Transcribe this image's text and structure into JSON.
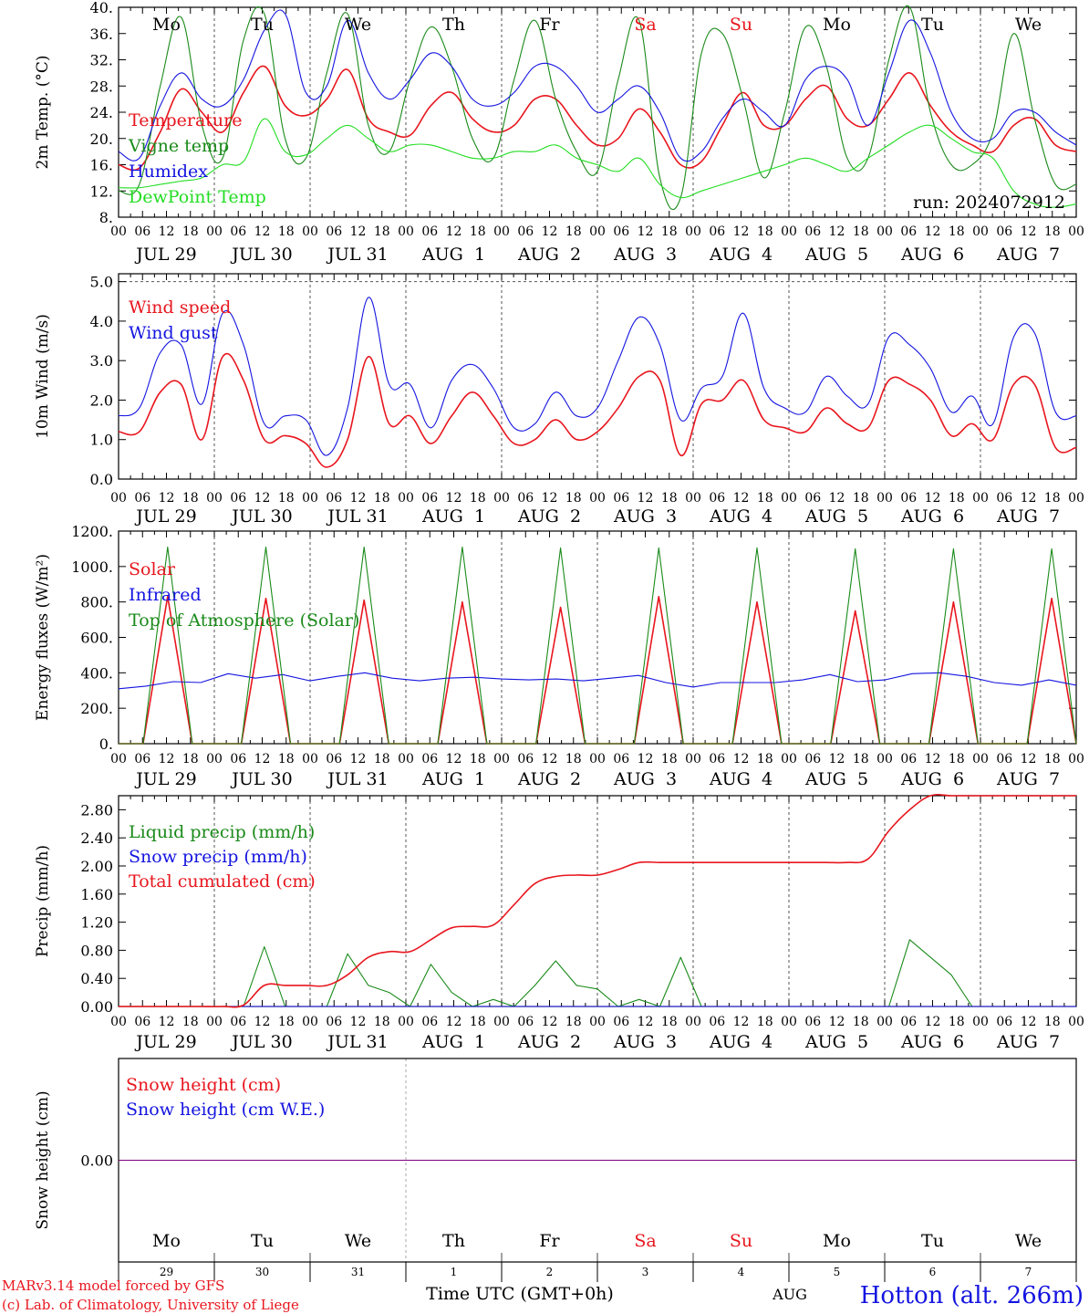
{
  "days": [
    {
      "date": "JUL 29",
      "weekday": "Mo",
      "daynum": "29",
      "weekend": false
    },
    {
      "date": "JUL 30",
      "weekday": "Tu",
      "daynum": "30",
      "weekend": false
    },
    {
      "date": "JUL 31",
      "weekday": "We",
      "daynum": "31",
      "weekend": false
    },
    {
      "date": "AUG  1",
      "weekday": "Th",
      "daynum": "1",
      "weekend": false
    },
    {
      "date": "AUG  2",
      "weekday": "Fr",
      "daynum": "2",
      "weekend": false
    },
    {
      "date": "AUG  3",
      "weekday": "Sa",
      "daynum": "3",
      "weekend": true
    },
    {
      "date": "AUG  4",
      "weekday": "Su",
      "daynum": "4",
      "weekend": true
    },
    {
      "date": "AUG  5",
      "weekday": "Mo",
      "daynum": "5",
      "weekend": false
    },
    {
      "date": "AUG  6",
      "weekday": "Tu",
      "daynum": "6",
      "weekend": false
    },
    {
      "date": "AUG  7",
      "weekday": "We",
      "daynum": "7",
      "weekend": false
    }
  ],
  "hour_ticks": [
    "00",
    "06",
    "12",
    "18"
  ],
  "hour_end": "00",
  "run_label": "run: 2024072912",
  "footer": {
    "model": "MARv3.14 model forced by GFS",
    "credit": "(c) Lab. of Climatology, University of Liege",
    "time_axis": "Time UTC (GMT+0h)",
    "month": "AUG",
    "station": "Hotton (alt. 266m)"
  },
  "colors": {
    "red": "#e8161e",
    "green": "#1a8a1a",
    "blue": "#1414e0",
    "lightgreen": "#22dd22",
    "purple": "#800080",
    "weekend": "#e8161e"
  },
  "chart_data": [
    {
      "type": "line",
      "id": "temp",
      "ylabel": "2m Temp. (°C)",
      "ylim": [
        8,
        40
      ],
      "yticks": [
        "8.",
        "12.",
        "16.",
        "20.",
        "24.",
        "28.",
        "32.",
        "36.",
        "40."
      ],
      "ytick_values": [
        8,
        12,
        16,
        20,
        24,
        28,
        32,
        36,
        40
      ],
      "x_step_hours": 6,
      "series": [
        {
          "name": "Temperature",
          "color": "red",
          "values": [
            16,
            15.5,
            21,
            27.5,
            24,
            21,
            27,
            31,
            25,
            23.5,
            26,
            30.5,
            23,
            21,
            20.5,
            25,
            27,
            23,
            21,
            22,
            26,
            26,
            22,
            19,
            20,
            24.5,
            21,
            16,
            16.5,
            22,
            27,
            22,
            22,
            26,
            28,
            23,
            22,
            26,
            30,
            25,
            21,
            19,
            18,
            22,
            23,
            19,
            18
          ]
        },
        {
          "name": "Vigne temp",
          "color": "green",
          "values": [
            12,
            13,
            28,
            38.5,
            22,
            17,
            35,
            39,
            20,
            17,
            30,
            39,
            22,
            18,
            29,
            37,
            31,
            20,
            17,
            29,
            38,
            26,
            18,
            15,
            29,
            38,
            14,
            11,
            33,
            36,
            26,
            14,
            24,
            37,
            31,
            17,
            17,
            32,
            40,
            24,
            16,
            16,
            21,
            36,
            23,
            13,
            13
          ]
        },
        {
          "name": "Humidex",
          "color": "blue",
          "values": [
            18,
            17,
            25,
            30,
            26,
            25,
            29,
            36.5,
            39,
            27,
            28,
            38,
            30,
            26,
            29,
            33,
            31,
            26,
            25,
            27,
            31,
            31,
            28,
            24,
            26,
            28,
            24,
            17,
            18,
            23,
            26,
            24,
            22,
            29,
            31,
            29,
            22,
            30,
            38,
            33,
            24,
            20,
            20,
            24,
            24,
            21,
            19
          ]
        },
        {
          "name": "DewPoint Temp",
          "color": "lightgreen",
          "values": [
            12.5,
            12.5,
            13,
            13.5,
            14,
            16,
            16.5,
            23,
            18,
            17.5,
            20,
            22,
            20,
            18,
            19,
            19,
            18,
            17,
            17,
            18,
            18,
            19,
            17,
            16,
            15,
            17,
            13,
            11,
            12,
            13,
            14,
            15,
            16,
            17,
            16,
            15,
            17,
            19,
            21,
            22,
            20,
            18,
            17,
            12,
            10,
            9.5,
            10
          ]
        }
      ]
    },
    {
      "type": "line",
      "id": "wind",
      "ylabel": "10m Wind (m/s)",
      "ylim": [
        0,
        5.2
      ],
      "yticks": [
        "0.0",
        "1.0",
        "2.0",
        "3.0",
        "4.0",
        "5.0"
      ],
      "ytick_values": [
        0,
        1,
        2,
        3,
        4,
        5
      ],
      "dashed_y": 5,
      "x_step_hours": 6,
      "series": [
        {
          "name": "Wind speed",
          "color": "red",
          "values": [
            1.2,
            1.2,
            2.2,
            2.4,
            1.0,
            3.1,
            2.5,
            1.0,
            1.1,
            0.9,
            0.3,
            1.0,
            3.1,
            1.4,
            1.6,
            0.9,
            1.6,
            2.2,
            1.6,
            0.9,
            1.0,
            1.5,
            1.0,
            1.2,
            1.8,
            2.6,
            2.5,
            0.6,
            1.9,
            2.0,
            2.5,
            1.5,
            1.3,
            1.2,
            1.8,
            1.4,
            1.3,
            2.5,
            2.4,
            2.0,
            1.1,
            1.4,
            1.0,
            2.4,
            2.4,
            0.8,
            0.8
          ]
        },
        {
          "name": "Wind gust",
          "color": "blue",
          "values": [
            1.6,
            1.8,
            3.2,
            3.4,
            1.9,
            4.2,
            3.4,
            1.4,
            1.6,
            1.5,
            0.6,
            1.8,
            4.6,
            2.4,
            2.4,
            1.3,
            2.5,
            2.9,
            2.3,
            1.3,
            1.4,
            2.2,
            1.6,
            1.8,
            3.0,
            4.1,
            3.4,
            1.5,
            2.3,
            2.6,
            4.2,
            2.3,
            1.8,
            1.7,
            2.6,
            2.1,
            1.9,
            3.6,
            3.4,
            2.8,
            1.7,
            2.1,
            1.4,
            3.6,
            3.7,
            1.7,
            1.6
          ]
        }
      ]
    },
    {
      "type": "line",
      "id": "energy",
      "ylabel": "Energy fluxes (W/m²)",
      "ylim": [
        0,
        1200
      ],
      "yticks": [
        "0.",
        "200.",
        "400.",
        "600.",
        "800.",
        "1000.",
        "1200."
      ],
      "ytick_values": [
        0,
        200,
        400,
        600,
        800,
        1000,
        1200
      ],
      "x_step_hours": 6,
      "series": [
        {
          "name": "Solar",
          "color": "red",
          "values": [
            0,
            0,
            830,
            0,
            0,
            0,
            820,
            0,
            0,
            0,
            810,
            0,
            0,
            0,
            800,
            0,
            0,
            0,
            770,
            0,
            0,
            0,
            830,
            0,
            0,
            0,
            800,
            0,
            0,
            0,
            750,
            0,
            0,
            0,
            800,
            0,
            0,
            0,
            820,
            0
          ]
        },
        {
          "name": "Infrared",
          "color": "blue",
          "values": [
            310,
            325,
            350,
            345,
            395,
            370,
            390,
            355,
            380,
            400,
            370,
            355,
            370,
            375,
            365,
            360,
            365,
            355,
            370,
            385,
            345,
            320,
            345,
            345,
            345,
            360,
            390,
            350,
            360,
            395,
            400,
            380,
            345,
            330,
            360,
            330
          ]
        },
        {
          "name": "Top of Atmosphere (Solar)",
          "color": "green",
          "values": [
            0,
            0,
            1110,
            0,
            0,
            0,
            1110,
            0,
            0,
            0,
            1110,
            0,
            0,
            0,
            1110,
            0,
            0,
            0,
            1105,
            0,
            0,
            0,
            1105,
            0,
            0,
            0,
            1105,
            0,
            0,
            0,
            1100,
            0,
            0,
            0,
            1100,
            0,
            0,
            0,
            1100,
            0
          ]
        }
      ]
    },
    {
      "type": "line",
      "id": "precip",
      "ylabel": "Precip (mm/h)",
      "ylim": [
        0,
        3.0
      ],
      "yticks": [
        "0.00",
        "0.40",
        "0.80",
        "1.20",
        "1.60",
        "2.00",
        "2.40",
        "2.80"
      ],
      "ytick_values": [
        0,
        0.4,
        0.8,
        1.2,
        1.6,
        2.0,
        2.4,
        2.8
      ],
      "x_step_hours": 6,
      "series": [
        {
          "name": "Liquid precip (mm/h)",
          "color": "green",
          "values": [
            0,
            0,
            0,
            0,
            0,
            0,
            0,
            0.85,
            0,
            0,
            0,
            0.75,
            0.3,
            0.2,
            0,
            0.6,
            0.2,
            0,
            0.1,
            0,
            0.3,
            0.65,
            0.3,
            0.25,
            0,
            0.1,
            0,
            0.7,
            0,
            0,
            0,
            0,
            0,
            0,
            0,
            0,
            0,
            0,
            0.95,
            0.7,
            0.45,
            0,
            0,
            0,
            0,
            0,
            0
          ]
        },
        {
          "name": "Snow precip (mm/h)",
          "color": "blue",
          "values": [
            0,
            0,
            0,
            0,
            0,
            0,
            0,
            0,
            0,
            0,
            0,
            0,
            0,
            0,
            0,
            0,
            0,
            0,
            0,
            0,
            0,
            0,
            0,
            0,
            0,
            0,
            0,
            0,
            0,
            0,
            0,
            0,
            0,
            0,
            0,
            0,
            0,
            0,
            0,
            0,
            0,
            0,
            0,
            0,
            0,
            0,
            0
          ]
        },
        {
          "name": "Total cumulated (cm)",
          "color": "red",
          "values": [
            0,
            0,
            0,
            0,
            0,
            0,
            0.02,
            0.3,
            0.3,
            0.3,
            0.3,
            0.45,
            0.7,
            0.78,
            0.78,
            0.95,
            1.12,
            1.14,
            1.16,
            1.45,
            1.75,
            1.85,
            1.87,
            1.87,
            1.95,
            2.05,
            2.05,
            2.05,
            2.05,
            2.05,
            2.05,
            2.05,
            2.05,
            2.05,
            2.05,
            2.05,
            2.1,
            2.5,
            2.8,
            3.0,
            3.0,
            3.0,
            3.0,
            3.0,
            3.0,
            3.0,
            3.0
          ]
        }
      ]
    },
    {
      "type": "line",
      "id": "snow",
      "ylabel": "Snow height (cm)",
      "ylim": [
        -1,
        1
      ],
      "yticks": [
        "0.00"
      ],
      "ytick_values": [
        0
      ],
      "x_step_hours": 6,
      "series": [
        {
          "name": "Snow height (cm)",
          "color": "red",
          "values": [
            0,
            0
          ]
        },
        {
          "name": "Snow height (cm W.E.)",
          "color": "blue",
          "values": [
            0,
            0
          ]
        }
      ]
    }
  ]
}
